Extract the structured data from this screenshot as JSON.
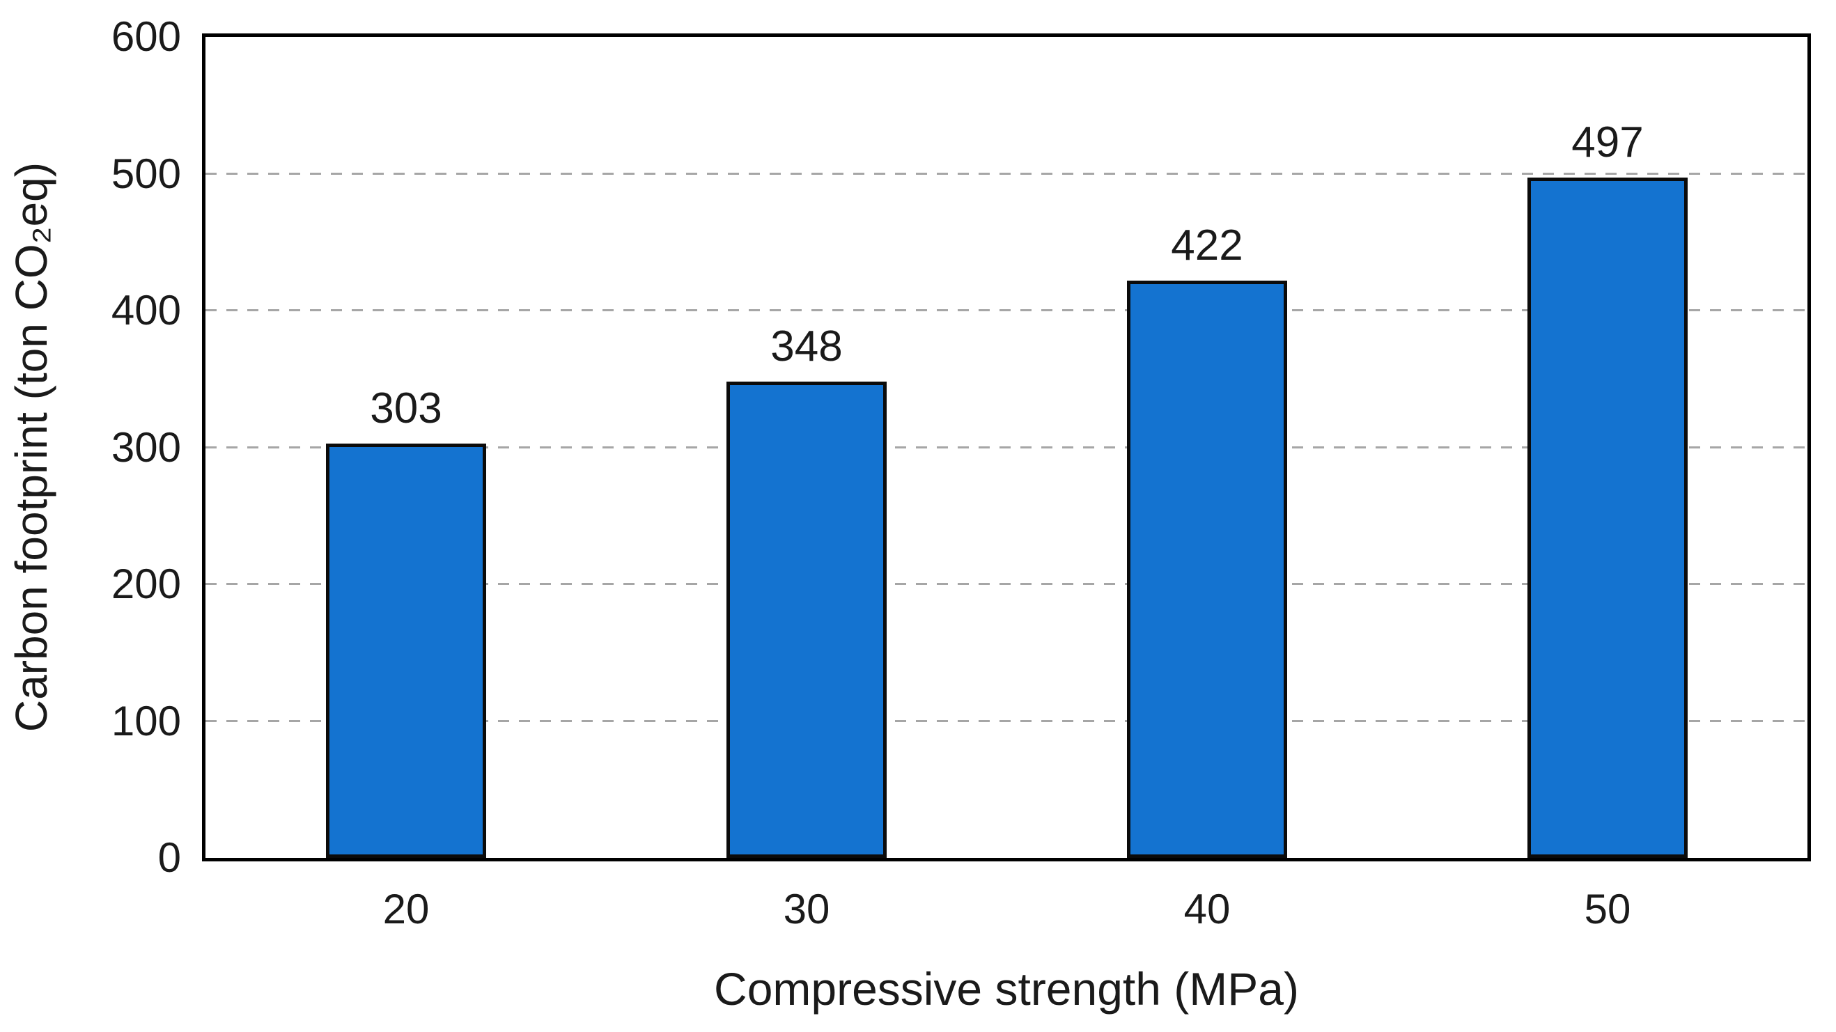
{
  "chart_data": {
    "type": "bar",
    "title": "",
    "categories": [
      "20",
      "30",
      "40",
      "50"
    ],
    "values": [
      303,
      348,
      422,
      497
    ],
    "value_labels": [
      "303",
      "348",
      "422",
      "497"
    ],
    "xlabel": "Compressive strength (MPa)",
    "ylabel": "Carbon footprint (ton CO₂eq)",
    "ylim": [
      0,
      600
    ],
    "y_tick_step": 100,
    "y_ticks": [
      "0",
      "100",
      "200",
      "300",
      "400",
      "500",
      "600"
    ],
    "grid": "horizontal-dashed",
    "legend": "none",
    "colors": {
      "bar_fill": "#1473D0",
      "bar_border": "#0B0B0B",
      "gridline": "#A6A6A6",
      "axis_border": "#000000",
      "text": "#1A1A1A",
      "background": "#FFFFFF"
    }
  }
}
